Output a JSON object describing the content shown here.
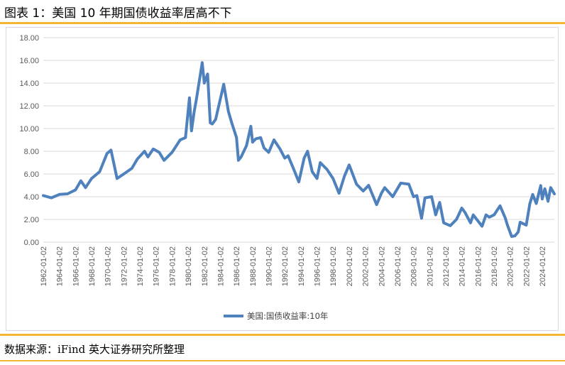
{
  "figure": {
    "title": "图表 1：美国 10 年期国债收益率居高不下",
    "source": "数据来源：iFind  英大证券研究所整理"
  },
  "colors": {
    "accent": "#f2b632",
    "series": "#4f81bd",
    "grid": "#d9d9d9"
  },
  "chart_data": {
    "type": "line",
    "title": "",
    "xlabel": "",
    "ylabel": "",
    "ylim": [
      0,
      18
    ],
    "yticks": [
      "0.00",
      "2.00",
      "4.00",
      "6.00",
      "8.00",
      "10.00",
      "12.00",
      "14.00",
      "16.00",
      "18.00"
    ],
    "xticks": [
      "1962-01-02",
      "1964-01-02",
      "1966-01-02",
      "1968-01-02",
      "1970-01-02",
      "1972-01-02",
      "1974-01-02",
      "1976-01-02",
      "1978-01-02",
      "1980-01-02",
      "1982-01-02",
      "1984-01-02",
      "1986-01-02",
      "1988-01-02",
      "1990-01-02",
      "1992-01-02",
      "1994-01-02",
      "1996-01-02",
      "1998-01-02",
      "2000-01-02",
      "2002-01-02",
      "2004-01-02",
      "2006-01-02",
      "2008-01-02",
      "2010-01-02",
      "2012-01-02",
      "2014-01-02",
      "2016-01-02",
      "2018-01-02",
      "2020-01-02",
      "2022-01-02",
      "2024-01-02"
    ],
    "x_range": [
      "1962-01-02",
      "2025-06-30"
    ],
    "grid": true,
    "legend_position": "bottom",
    "series": [
      {
        "name": "美国:国债收益率:10年",
        "x": [
          "1962-01-02",
          "1963-01-02",
          "1964-01-02",
          "1965-01-02",
          "1966-01-02",
          "1966-09-01",
          "1967-04-01",
          "1968-01-02",
          "1969-01-02",
          "1969-12-01",
          "1970-06-01",
          "1971-03-01",
          "1972-01-02",
          "1973-01-02",
          "1973-09-01",
          "1974-08-01",
          "1975-01-02",
          "1975-09-01",
          "1976-06-01",
          "1977-01-02",
          "1978-01-02",
          "1979-01-02",
          "1979-09-01",
          "1980-03-01",
          "1980-06-01",
          "1980-10-01",
          "1981-01-02",
          "1981-09-30",
          "1982-01-02",
          "1982-06-01",
          "1982-10-01",
          "1983-01-02",
          "1983-06-01",
          "1984-06-01",
          "1985-01-02",
          "1985-06-01",
          "1986-01-02",
          "1986-04-01",
          "1986-08-01",
          "1987-04-01",
          "1987-10-15",
          "1988-01-02",
          "1988-06-01",
          "1989-01-02",
          "1989-06-01",
          "1990-01-02",
          "1990-09-01",
          "1991-06-01",
          "1992-01-02",
          "1992-06-01",
          "1993-01-02",
          "1993-10-01",
          "1994-06-01",
          "1994-11-01",
          "1995-06-01",
          "1996-01-02",
          "1996-06-01",
          "1997-04-01",
          "1998-01-02",
          "1998-10-01",
          "1999-06-01",
          "2000-01-02",
          "2000-12-01",
          "2001-10-01",
          "2002-06-01",
          "2003-06-01",
          "2004-01-02",
          "2004-06-01",
          "2005-06-01",
          "2006-06-01",
          "2007-06-01",
          "2008-01-02",
          "2008-06-01",
          "2008-12-30",
          "2009-06-01",
          "2010-04-01",
          "2010-10-01",
          "2011-04-01",
          "2011-10-01",
          "2012-07-25",
          "2013-05-01",
          "2013-12-31",
          "2014-06-01",
          "2015-01-30",
          "2015-06-01",
          "2016-07-08",
          "2017-01-02",
          "2017-06-01",
          "2018-01-02",
          "2018-10-01",
          "2019-06-01",
          "2019-09-01",
          "2020-03-09",
          "2020-08-04",
          "2021-01-02",
          "2021-03-31",
          "2021-12-31",
          "2022-06-14",
          "2022-10-21",
          "2023-04-01",
          "2023-10-19",
          "2023-12-27",
          "2024-04-25",
          "2024-09-16",
          "2025-01-13",
          "2025-06-30"
        ],
        "values": [
          4.1,
          3.9,
          4.2,
          4.25,
          4.6,
          5.4,
          4.8,
          5.6,
          6.2,
          7.8,
          8.1,
          5.6,
          6.0,
          6.5,
          7.3,
          8.0,
          7.5,
          8.2,
          7.9,
          7.2,
          7.9,
          9.0,
          9.2,
          12.7,
          9.8,
          11.5,
          12.5,
          15.8,
          14.0,
          14.8,
          10.5,
          10.4,
          10.8,
          13.9,
          11.5,
          10.5,
          9.2,
          7.2,
          7.5,
          8.5,
          10.2,
          8.8,
          9.1,
          9.2,
          8.3,
          7.9,
          9.0,
          8.2,
          7.4,
          7.6,
          6.6,
          5.3,
          7.4,
          8.0,
          6.2,
          5.6,
          7.0,
          6.4,
          5.6,
          4.3,
          5.8,
          6.8,
          5.1,
          4.5,
          5.0,
          3.3,
          4.3,
          4.8,
          4.0,
          5.2,
          5.1,
          4.0,
          4.1,
          2.1,
          3.9,
          4.0,
          2.4,
          3.5,
          1.7,
          1.45,
          2.0,
          3.0,
          2.6,
          1.7,
          2.4,
          1.4,
          2.4,
          2.2,
          2.4,
          3.2,
          2.1,
          1.5,
          0.5,
          0.55,
          0.9,
          1.75,
          1.5,
          3.4,
          4.2,
          3.4,
          4.98,
          3.8,
          4.7,
          3.6,
          4.8,
          4.25
        ]
      }
    ]
  }
}
